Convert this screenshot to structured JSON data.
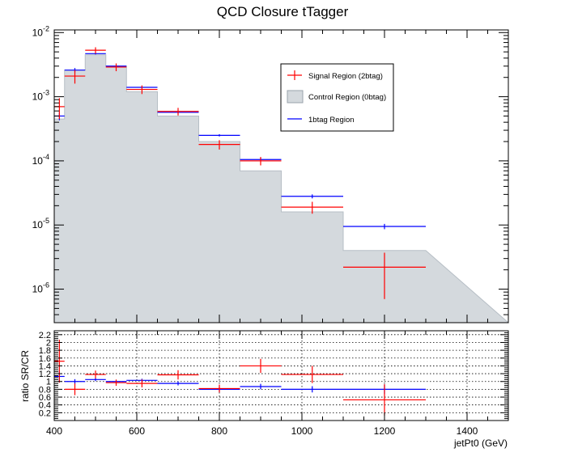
{
  "chart_data": [
    {
      "type": "histogram",
      "title": "QCD Closure tTagger",
      "xlabel": "",
      "ylabel": "",
      "xlim": [
        400,
        1500
      ],
      "ylim": [
        3e-07,
        0.011
      ],
      "yscale": "log",
      "ytick_labels": [
        {
          "value": 0.01,
          "mantissa": "10",
          "exp": "-2"
        },
        {
          "value": 0.001,
          "mantissa": "10",
          "exp": "-3"
        },
        {
          "value": 0.0001,
          "mantissa": "10",
          "exp": "-4"
        },
        {
          "value": 1e-05,
          "mantissa": "10",
          "exp": "-5"
        },
        {
          "value": 1e-06,
          "mantissa": "10",
          "exp": "-6"
        }
      ],
      "bin_edges": [
        400,
        425,
        475,
        525,
        575,
        650,
        750,
        850,
        950,
        1100,
        1300,
        1500
      ],
      "legend": {
        "position": "top-right",
        "entries": [
          {
            "label": "Signal Region (2btag)",
            "color": "#ff0000",
            "style": "line"
          },
          {
            "label": "Control Region (0btag)",
            "color": "#d4d9dd",
            "style": "fill"
          },
          {
            "label": "1btag Region",
            "color": "#0000ff",
            "style": "line"
          }
        ]
      },
      "series": [
        {
          "name": "Control Region (0btag)",
          "color": "#d4d9dd",
          "values": [
            0.00045,
            0.0026,
            0.0045,
            0.003,
            0.0012,
            0.0005,
            0.0002,
            7e-05,
            1.6e-05,
            4e-06
          ]
        },
        {
          "name": "1btag Region",
          "color": "#0000ff",
          "values": [
            0.0005,
            0.0026,
            0.0047,
            0.003,
            0.0014,
            0.00057,
            0.00025,
            0.000105,
            2.8e-05,
            9.5e-06
          ],
          "errors": [
            7e-05,
            0.0002,
            0.00015,
            8e-05,
            5e-05,
            2e-05,
            1e-05,
            6e-06,
            2e-06,
            9e-07
          ]
        },
        {
          "name": "Signal Region (2btag)",
          "color": "#ff0000",
          "values": [
            0.0007,
            0.0021,
            0.0053,
            0.0029,
            0.0013,
            0.00059,
            0.00018,
            0.0001,
            1.9e-05,
            2.2e-06
          ],
          "errors": [
            0.00025,
            0.0005,
            0.0006,
            0.0004,
            0.0002,
            8e-05,
            3e-05,
            1.5e-05,
            4e-06,
            1.5e-06
          ]
        }
      ]
    },
    {
      "type": "histogram",
      "title": "",
      "xlabel": "jetPt0 (GeV)",
      "ylabel": "ratio SR/CR",
      "xlim": [
        400,
        1500
      ],
      "ylim": [
        0,
        2.3
      ],
      "x_ticks": [
        400,
        600,
        800,
        1000,
        1200,
        1400
      ],
      "y_ticks": [
        0.2,
        0.4,
        0.6,
        0.8,
        1,
        1.2,
        1.4,
        1.6,
        1.8,
        2,
        2.2
      ],
      "grid": true,
      "bin_edges": [
        400,
        425,
        475,
        525,
        575,
        650,
        750,
        850,
        950,
        1100,
        1300,
        1500
      ],
      "series": [
        {
          "name": "",
          "color": "#ff0000",
          "values": [
            1.52,
            0.8,
            1.18,
            0.97,
            0.95,
            1.17,
            0.82,
            1.4,
            1.18,
            0.53
          ],
          "errors": [
            0.55,
            0.15,
            0.1,
            0.08,
            0.1,
            0.12,
            0.1,
            0.18,
            0.22,
            0.4
          ]
        },
        {
          "name": "",
          "color": "#0000ff",
          "values": [
            1.13,
            1.0,
            1.05,
            1.0,
            1.03,
            0.95,
            0.8,
            0.87,
            0.8,
            0.8
          ],
          "errors": [
            0.15,
            0.06,
            0.04,
            0.03,
            0.04,
            0.05,
            0.06,
            0.07,
            0.08,
            0.12
          ]
        }
      ]
    }
  ]
}
